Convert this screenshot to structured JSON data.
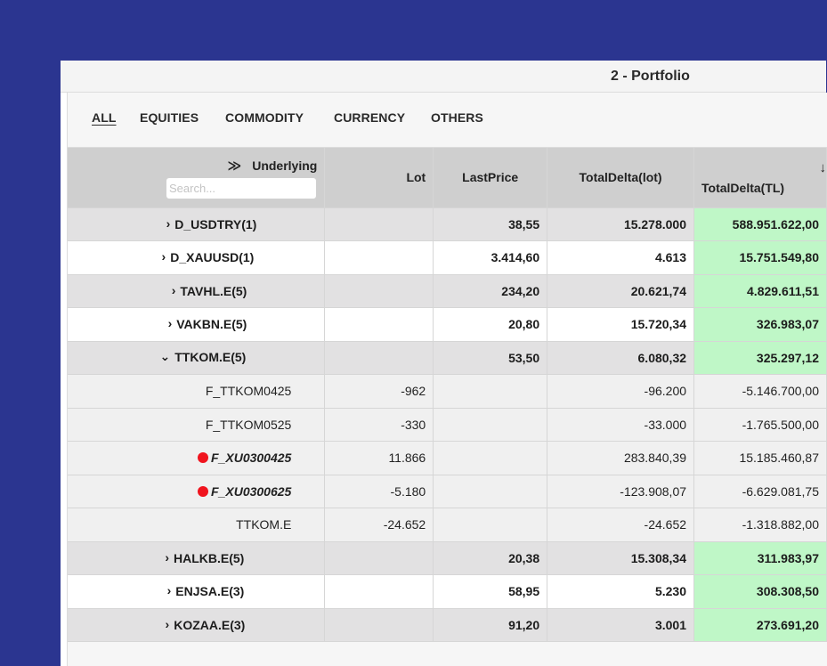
{
  "window": {
    "title": "2 - Portfolio"
  },
  "tabs": [
    {
      "label": "ALL",
      "active": true
    },
    {
      "label": "EQUITIES",
      "active": false
    },
    {
      "label": "COMMODITY",
      "active": false
    },
    {
      "label": "CURRENCY",
      "active": false
    },
    {
      "label": "OTHERS",
      "active": false
    }
  ],
  "table": {
    "headers": {
      "underlying": "Underlying",
      "expand_all": "≫",
      "search_placeholder": "Search...",
      "lot": "Lot",
      "last_price": "LastPrice",
      "total_delta_lot": "TotalDelta(lot)",
      "total_delta_tl": "TotalDelta(TL)",
      "sort_icon": "↓"
    },
    "rows": [
      {
        "kind": "group",
        "expander": "›",
        "underlying": "D_USDTRY(1)",
        "lot": "",
        "last_price": "38,55",
        "total_delta_lot": "15.278.000",
        "total_delta_tl": "588.951.622,00"
      },
      {
        "kind": "group",
        "expander": "›",
        "underlying": "D_XAUUSD(1)",
        "lot": "",
        "last_price": "3.414,60",
        "total_delta_lot": "4.613",
        "total_delta_tl": "15.751.549,80"
      },
      {
        "kind": "group",
        "expander": "›",
        "underlying": "TAVHL.E(5)",
        "lot": "",
        "last_price": "234,20",
        "total_delta_lot": "20.621,74",
        "total_delta_tl": "4.829.611,51"
      },
      {
        "kind": "group",
        "expander": "›",
        "underlying": "VAKBN.E(5)",
        "lot": "",
        "last_price": "20,80",
        "total_delta_lot": "15.720,34",
        "total_delta_tl": "326.983,07"
      },
      {
        "kind": "group",
        "expander": "⌄",
        "underlying": "TTKOM.E(5)",
        "lot": "",
        "last_price": "53,50",
        "total_delta_lot": "6.080,32",
        "total_delta_tl": "325.297,12"
      },
      {
        "kind": "child",
        "underlying": "F_TTKOM0425",
        "lot": "-962",
        "last_price": "",
        "total_delta_lot": "-96.200",
        "total_delta_tl": "-5.146.700,00",
        "flagged": false
      },
      {
        "kind": "child",
        "underlying": "F_TTKOM0525",
        "lot": "-330",
        "last_price": "",
        "total_delta_lot": "-33.000",
        "total_delta_tl": "-1.765.500,00",
        "flagged": false
      },
      {
        "kind": "child",
        "underlying": "F_XU0300425",
        "lot": "11.866",
        "last_price": "",
        "total_delta_lot": "283.840,39",
        "total_delta_tl": "15.185.460,87",
        "flagged": true
      },
      {
        "kind": "child",
        "underlying": "F_XU0300625",
        "lot": "-5.180",
        "last_price": "",
        "total_delta_lot": "-123.908,07",
        "total_delta_tl": "-6.629.081,75",
        "flagged": true
      },
      {
        "kind": "child",
        "underlying": "TTKOM.E",
        "lot": "-24.652",
        "last_price": "",
        "total_delta_lot": "-24.652",
        "total_delta_tl": "-1.318.882,00",
        "flagged": false
      },
      {
        "kind": "group",
        "expander": "›",
        "underlying": "HALKB.E(5)",
        "lot": "",
        "last_price": "20,38",
        "total_delta_lot": "15.308,34",
        "total_delta_tl": "311.983,97"
      },
      {
        "kind": "group",
        "expander": "›",
        "underlying": "ENJSA.E(3)",
        "lot": "",
        "last_price": "58,95",
        "total_delta_lot": "5.230",
        "total_delta_tl": "308.308,50"
      },
      {
        "kind": "group",
        "expander": "›",
        "underlying": "KOZAA.E(3)",
        "lot": "",
        "last_price": "91,20",
        "total_delta_lot": "3.001",
        "total_delta_tl": "273.691,20"
      }
    ]
  },
  "colors": {
    "background": "#2b3590",
    "positive_highlight": "#bff7c7",
    "flag_dot": "#f0141e"
  }
}
